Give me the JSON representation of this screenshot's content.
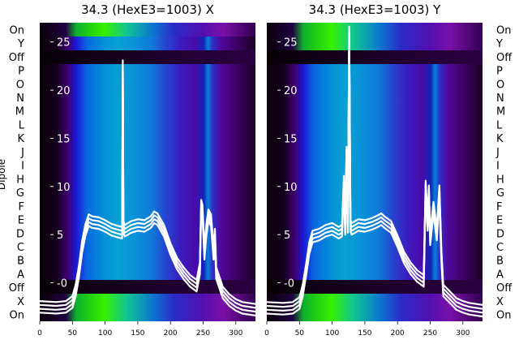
{
  "chart_data": [
    {
      "type": "heatmap",
      "title": "34.3 (HexE3=1003) X",
      "ylabel": "Dipole",
      "y_categories_left": [
        "On",
        "Y",
        "Off",
        "P",
        "O",
        "N",
        "M",
        "L",
        "K",
        "J",
        "I",
        "H",
        "G",
        "F",
        "E",
        "D",
        "C",
        "B",
        "A",
        "Off",
        "X",
        "On"
      ],
      "x_ticks": [
        0,
        50,
        100,
        150,
        200,
        250,
        300
      ],
      "xlim": [
        0,
        330
      ],
      "overlay_ticks": [
        0,
        5,
        10,
        15,
        20,
        25
      ],
      "overlay_ylim": [
        -4,
        27
      ],
      "overlay_line": {
        "x": [
          0,
          25,
          40,
          50,
          55,
          60,
          65,
          70,
          75,
          80,
          90,
          100,
          110,
          120,
          126,
          127,
          128,
          130,
          135,
          140,
          150,
          160,
          170,
          175,
          180,
          190,
          200,
          210,
          220,
          230,
          240,
          245,
          247,
          249,
          252,
          255,
          258,
          262,
          266,
          268,
          270,
          280,
          290,
          300,
          310,
          330
        ],
        "y": [
          -2.5,
          -2.6,
          -2.5,
          -2.0,
          -0.8,
          1.2,
          3.8,
          5.5,
          6.5,
          6.3,
          6.2,
          5.9,
          5.5,
          5.3,
          5.2,
          22.5,
          5.8,
          5.4,
          5.6,
          5.8,
          6.0,
          5.9,
          6.3,
          6.8,
          6.6,
          5.4,
          3.5,
          2.0,
          1.0,
          0.2,
          -0.3,
          1.5,
          8.0,
          7.5,
          3.0,
          5.5,
          7.0,
          6.5,
          3.0,
          5.0,
          1.0,
          -1.0,
          -1.8,
          -2.3,
          -2.6,
          -2.8
        ]
      }
    },
    {
      "type": "heatmap",
      "title": "34.3 (HexE3=1003) Y",
      "y_categories_right": [
        "On",
        "Y",
        "Off",
        "P",
        "O",
        "N",
        "M",
        "L",
        "K",
        "J",
        "I",
        "H",
        "G",
        "F",
        "E",
        "D",
        "C",
        "B",
        "A",
        "Off",
        "X",
        "On"
      ],
      "x_ticks": [
        0,
        50,
        100,
        150,
        200,
        250,
        300
      ],
      "xlim": [
        0,
        330
      ],
      "overlay_ticks": [
        0,
        5,
        10,
        15,
        20,
        25
      ],
      "overlay_ylim": [
        -4,
        27
      ],
      "overlay_line": {
        "x": [
          0,
          25,
          40,
          50,
          55,
          60,
          65,
          70,
          80,
          90,
          100,
          110,
          115,
          118,
          120,
          122,
          124,
          126,
          128,
          130,
          135,
          140,
          150,
          160,
          170,
          175,
          180,
          190,
          200,
          210,
          220,
          230,
          240,
          243,
          246,
          248,
          250,
          255,
          260,
          264,
          267,
          270,
          280,
          290,
          300,
          310,
          330
        ],
        "y": [
          -2.6,
          -2.7,
          -2.6,
          -2.1,
          -0.8,
          1.3,
          3.6,
          4.8,
          5.0,
          5.4,
          5.6,
          5.2,
          5.4,
          10.5,
          5.6,
          13.5,
          5.8,
          26.0,
          5.9,
          5.6,
          5.8,
          6.0,
          5.9,
          6.1,
          6.4,
          6.6,
          6.3,
          5.8,
          4.3,
          2.6,
          1.5,
          0.7,
          0.2,
          10.0,
          6.0,
          9.5,
          4.5,
          7.8,
          5.0,
          9.5,
          3.0,
          -0.8,
          -1.5,
          -2.2,
          -2.5,
          -2.7,
          -2.9
        ]
      }
    }
  ]
}
